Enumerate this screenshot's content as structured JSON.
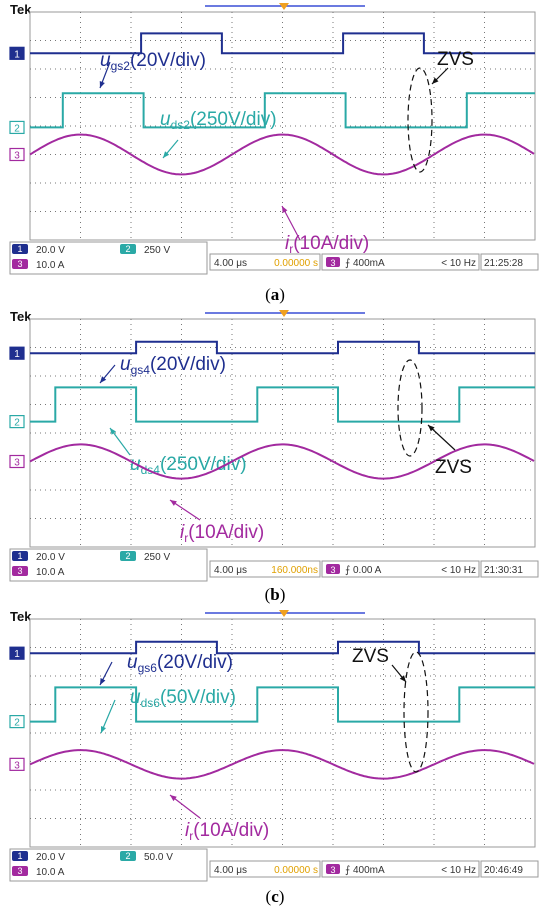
{
  "chart_data": [
    {
      "type": "line",
      "brand": "Tek",
      "caption_letter": "a",
      "grid": true,
      "x_divisions": 10,
      "y_divisions": 8,
      "series": [
        {
          "channel": "1",
          "color": "#1f2f8f",
          "kind": "square",
          "high_div": 7.25,
          "low_div": 6.55,
          "duty": 0.4,
          "period_div": 4.0,
          "phase_div": 0.2,
          "label_sym": "u",
          "label_sub": "gs2",
          "label_rest": "(20V/div)"
        },
        {
          "channel": "2",
          "color": "#2aa9a6",
          "kind": "square",
          "high_div": 5.15,
          "low_div": 3.95,
          "duty": 0.4,
          "period_div": 4.0,
          "phase_div": 1.75,
          "label_sym": "u",
          "label_sub": "ds2",
          "label_rest": "(250V/div)"
        },
        {
          "channel": "3",
          "color": "#a22a9f",
          "kind": "sine",
          "center_div": 3.0,
          "amp_div": 0.7,
          "period_div": 4.0,
          "phase_div": 0.0,
          "label_sym": "i",
          "label_sub": "r",
          "label_rest": "(10A/div)"
        }
      ],
      "annotation": "ZVS",
      "readouts": {
        "ch1_scale": "20.0 V",
        "ch2_scale": "250 V",
        "ch3_scale": "10.0 A",
        "timebase": "4.00 μs",
        "offset": "0.00000 s",
        "trigger_ch": "3",
        "trigger": "⨍ 400mA",
        "freq": "< 10 Hz",
        "clock": "21:25:28"
      }
    },
    {
      "type": "line",
      "brand": "Tek",
      "caption_letter": "b",
      "grid": true,
      "x_divisions": 10,
      "y_divisions": 8,
      "series": [
        {
          "channel": "1",
          "color": "#1f2f8f",
          "kind": "square",
          "high_div": 7.2,
          "low_div": 6.8,
          "duty": 0.4,
          "period_div": 4.0,
          "phase_div": 0.3,
          "label_sym": "u",
          "label_sub": "gs4",
          "label_rest": "(20V/div)"
        },
        {
          "channel": "2",
          "color": "#2aa9a6",
          "kind": "square",
          "high_div": 5.6,
          "low_div": 4.4,
          "duty": 0.4,
          "period_div": 4.0,
          "phase_div": 1.9,
          "label_sym": "u",
          "label_sub": "ds4",
          "label_rest": "(250V/div)"
        },
        {
          "channel": "3",
          "color": "#a22a9f",
          "kind": "sine",
          "center_div": 3.0,
          "amp_div": 0.6,
          "period_div": 4.0,
          "phase_div": 0.0,
          "label_sym": "i",
          "label_sub": "r",
          "label_rest": "(10A/div)"
        }
      ],
      "annotation": "ZVS",
      "readouts": {
        "ch1_scale": "20.0 V",
        "ch2_scale": "250 V",
        "ch3_scale": "10.0 A",
        "timebase": "4.00 μs",
        "offset": "160.000ns",
        "trigger_ch": "3",
        "trigger": "⨍ 0.00 A",
        "freq": "< 10 Hz",
        "clock": "21:30:31"
      }
    },
    {
      "type": "line",
      "brand": "Tek",
      "caption_letter": "c",
      "grid": true,
      "x_divisions": 10,
      "y_divisions": 8,
      "series": [
        {
          "channel": "1",
          "color": "#1f2f8f",
          "kind": "square",
          "high_div": 7.2,
          "low_div": 6.8,
          "duty": 0.4,
          "period_div": 4.0,
          "phase_div": 0.3,
          "label_sym": "u",
          "label_sub": "gs6",
          "label_rest": "(20V/div)"
        },
        {
          "channel": "2",
          "color": "#2aa9a6",
          "kind": "square",
          "high_div": 5.6,
          "low_div": 4.4,
          "duty": 0.4,
          "period_div": 4.0,
          "phase_div": 1.9,
          "label_sym": "u",
          "label_sub": "ds6",
          "label_rest": "(50V/div)"
        },
        {
          "channel": "3",
          "color": "#a22a9f",
          "kind": "sine",
          "center_div": 2.9,
          "amp_div": 0.5,
          "period_div": 4.0,
          "phase_div": 0.0,
          "label_sym": "i",
          "label_sub": "r",
          "label_rest": "(10A/div)"
        }
      ],
      "annotation": "ZVS",
      "readouts": {
        "ch1_scale": "20.0 V",
        "ch2_scale": "50.0 V",
        "ch3_scale": "10.0 A",
        "timebase": "4.00 μs",
        "offset": "0.00000 s",
        "trigger_ch": "3",
        "trigger": "⨍ 400mA",
        "freq": "< 10 Hz",
        "clock": "20:46:49"
      }
    }
  ]
}
